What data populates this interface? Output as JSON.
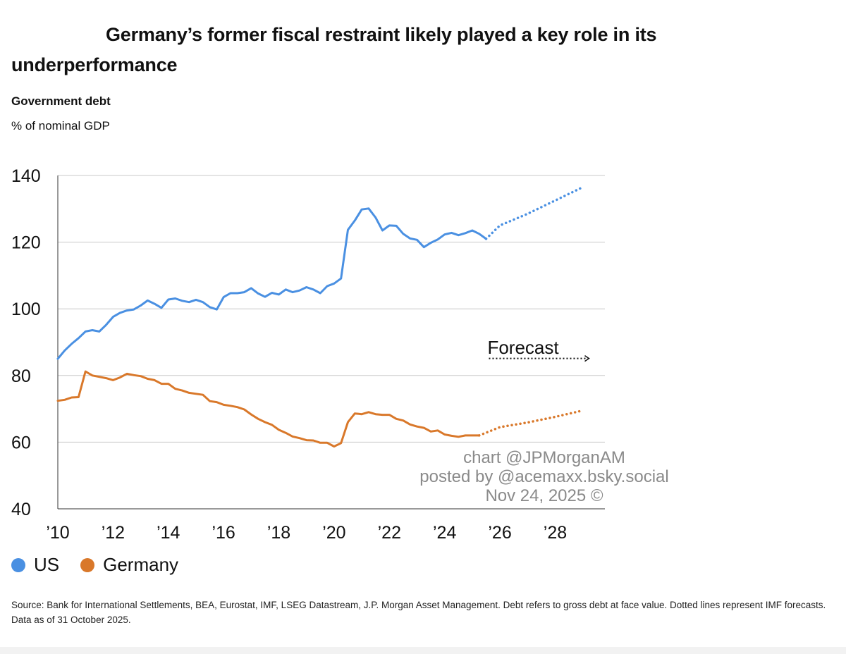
{
  "header": {
    "title": "Germany’s former fiscal restraint likely played a key role in its underperformance",
    "subtitle": "Government debt",
    "unit": "% of nominal GDP"
  },
  "watermark": {
    "line1": "chart @JPMorganAM",
    "line2": "posted by @acemaxx.bsky.social",
    "line3": "Nov 24, 2025 ©"
  },
  "source": "Source: Bank for International Settlements, BEA, Eurostat, IMF, LSEG Datastream, J.P. Morgan Asset Management. Debt refers to gross debt at face value. Dotted lines represent IMF forecasts. Data as of 31 October 2025.",
  "chart_data": {
    "type": "line",
    "xlabel": "",
    "ylabel": "",
    "xlim": [
      2010,
      2029.8
    ],
    "ylim": [
      40,
      140
    ],
    "y_ticks": [
      40,
      60,
      80,
      100,
      120,
      140
    ],
    "x_ticks": [
      2010,
      2012,
      2014,
      2016,
      2018,
      2020,
      2022,
      2024,
      2026,
      2028
    ],
    "x_tick_labels": [
      "’10",
      "’12",
      "’14",
      "’16",
      "’18",
      "’20",
      "’22",
      "’24",
      "’26",
      "’28"
    ],
    "grid": "horizontal",
    "legend_position": "bottom-left",
    "annotation": "Forecast",
    "series": [
      {
        "name": "US",
        "color": "#4a90e2",
        "actual": [
          [
            2010.0,
            85.0
          ],
          [
            2010.25,
            87.5
          ],
          [
            2010.5,
            89.5
          ],
          [
            2010.75,
            91.2
          ],
          [
            2011.0,
            93.2
          ],
          [
            2011.25,
            93.6
          ],
          [
            2011.5,
            93.2
          ],
          [
            2011.75,
            95.2
          ],
          [
            2012.0,
            97.6
          ],
          [
            2012.25,
            98.8
          ],
          [
            2012.5,
            99.5
          ],
          [
            2012.75,
            99.8
          ],
          [
            2013.0,
            101.0
          ],
          [
            2013.25,
            102.5
          ],
          [
            2013.5,
            101.5
          ],
          [
            2013.75,
            100.3
          ],
          [
            2014.0,
            102.8
          ],
          [
            2014.25,
            103.1
          ],
          [
            2014.5,
            102.4
          ],
          [
            2014.75,
            102.0
          ],
          [
            2015.0,
            102.7
          ],
          [
            2015.25,
            102.0
          ],
          [
            2015.5,
            100.5
          ],
          [
            2015.75,
            99.8
          ],
          [
            2016.0,
            103.5
          ],
          [
            2016.25,
            104.7
          ],
          [
            2016.5,
            104.7
          ],
          [
            2016.75,
            105.0
          ],
          [
            2017.0,
            106.2
          ],
          [
            2017.25,
            104.6
          ],
          [
            2017.5,
            103.6
          ],
          [
            2017.75,
            104.8
          ],
          [
            2018.0,
            104.3
          ],
          [
            2018.25,
            105.8
          ],
          [
            2018.5,
            105.0
          ],
          [
            2018.75,
            105.5
          ],
          [
            2019.0,
            106.5
          ],
          [
            2019.25,
            105.8
          ],
          [
            2019.5,
            104.7
          ],
          [
            2019.75,
            106.8
          ],
          [
            2020.0,
            107.6
          ],
          [
            2020.25,
            109.1
          ],
          [
            2020.5,
            123.7
          ],
          [
            2020.75,
            126.5
          ],
          [
            2021.0,
            129.8
          ],
          [
            2021.25,
            130.1
          ],
          [
            2021.5,
            127.4
          ],
          [
            2021.75,
            123.5
          ],
          [
            2022.0,
            125.0
          ],
          [
            2022.25,
            124.9
          ],
          [
            2022.5,
            122.5
          ],
          [
            2022.75,
            121.1
          ],
          [
            2023.0,
            120.7
          ],
          [
            2023.25,
            118.5
          ],
          [
            2023.5,
            119.8
          ],
          [
            2023.75,
            120.8
          ],
          [
            2024.0,
            122.3
          ],
          [
            2024.25,
            122.8
          ],
          [
            2024.5,
            122.1
          ],
          [
            2024.75,
            122.7
          ],
          [
            2025.0,
            123.5
          ],
          [
            2025.25,
            122.5
          ],
          [
            2025.5,
            121.0
          ]
        ],
        "forecast": [
          [
            2025.5,
            121.0
          ],
          [
            2026.0,
            125.0
          ],
          [
            2027.0,
            128.5
          ],
          [
            2028.0,
            132.5
          ],
          [
            2029.0,
            136.5
          ]
        ]
      },
      {
        "name": "Germany",
        "color": "#d9782a",
        "actual": [
          [
            2010.0,
            72.4
          ],
          [
            2010.25,
            72.7
          ],
          [
            2010.5,
            73.4
          ],
          [
            2010.75,
            73.5
          ],
          [
            2011.0,
            81.2
          ],
          [
            2011.25,
            80.0
          ],
          [
            2011.5,
            79.6
          ],
          [
            2011.75,
            79.2
          ],
          [
            2012.0,
            78.6
          ],
          [
            2012.25,
            79.4
          ],
          [
            2012.5,
            80.5
          ],
          [
            2012.75,
            80.1
          ],
          [
            2013.0,
            79.8
          ],
          [
            2013.25,
            79.0
          ],
          [
            2013.5,
            78.6
          ],
          [
            2013.75,
            77.5
          ],
          [
            2014.0,
            77.5
          ],
          [
            2014.25,
            76.0
          ],
          [
            2014.5,
            75.5
          ],
          [
            2014.75,
            74.8
          ],
          [
            2015.0,
            74.5
          ],
          [
            2015.25,
            74.2
          ],
          [
            2015.5,
            72.3
          ],
          [
            2015.75,
            72.0
          ],
          [
            2016.0,
            71.2
          ],
          [
            2016.25,
            70.9
          ],
          [
            2016.5,
            70.5
          ],
          [
            2016.75,
            69.8
          ],
          [
            2017.0,
            68.3
          ],
          [
            2017.25,
            67.0
          ],
          [
            2017.5,
            66.0
          ],
          [
            2017.75,
            65.2
          ],
          [
            2018.0,
            63.7
          ],
          [
            2018.25,
            62.8
          ],
          [
            2018.5,
            61.7
          ],
          [
            2018.75,
            61.2
          ],
          [
            2019.0,
            60.6
          ],
          [
            2019.25,
            60.5
          ],
          [
            2019.5,
            59.8
          ],
          [
            2019.75,
            59.8
          ],
          [
            2020.0,
            58.7
          ],
          [
            2020.25,
            59.7
          ],
          [
            2020.5,
            66.0
          ],
          [
            2020.75,
            68.6
          ],
          [
            2021.0,
            68.4
          ],
          [
            2021.25,
            69.0
          ],
          [
            2021.5,
            68.4
          ],
          [
            2021.75,
            68.2
          ],
          [
            2022.0,
            68.2
          ],
          [
            2022.25,
            67.0
          ],
          [
            2022.5,
            66.5
          ],
          [
            2022.75,
            65.3
          ],
          [
            2023.0,
            64.7
          ],
          [
            2023.25,
            64.3
          ],
          [
            2023.5,
            63.2
          ],
          [
            2023.75,
            63.5
          ],
          [
            2024.0,
            62.3
          ],
          [
            2024.25,
            61.9
          ],
          [
            2024.5,
            61.6
          ],
          [
            2024.75,
            62.0
          ],
          [
            2025.0,
            62.0
          ],
          [
            2025.25,
            62.0
          ]
        ],
        "forecast": [
          [
            2025.25,
            62.0
          ],
          [
            2026.0,
            64.5
          ],
          [
            2027.0,
            65.9
          ],
          [
            2028.0,
            67.6
          ],
          [
            2029.0,
            69.5
          ]
        ]
      }
    ]
  }
}
